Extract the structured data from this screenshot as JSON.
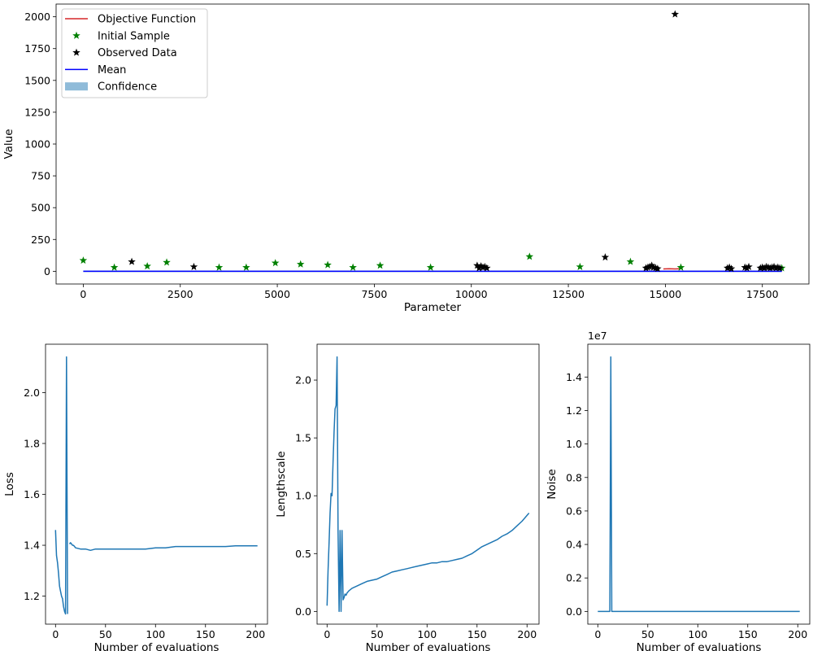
{
  "colors": {
    "objective": "#d62728",
    "initial": "#008000",
    "observed": "#000000",
    "mean": "#0000ff",
    "confidence": "#1f77b4",
    "line": "#1f77b4"
  },
  "chart_data": [
    {
      "type": "scatter",
      "xlabel": "Parameter",
      "ylabel": "Value",
      "xlim": [
        -700,
        18700
      ],
      "ylim": [
        -100,
        2100
      ],
      "x_ticks": [
        0,
        2500,
        5000,
        7500,
        10000,
        12500,
        15000,
        17500
      ],
      "y_ticks": [
        0,
        250,
        500,
        750,
        1000,
        1250,
        1500,
        1750,
        2000
      ],
      "legend": {
        "placement": "top-left",
        "items": [
          {
            "label": "Objective Function",
            "kind": "line",
            "color": "#d62728"
          },
          {
            "label": "Initial Sample",
            "kind": "star",
            "color": "#008000"
          },
          {
            "label": "Observed Data",
            "kind": "star",
            "color": "#000000"
          },
          {
            "label": "Mean",
            "kind": "line",
            "color": "#0000ff"
          },
          {
            "label": "Confidence",
            "kind": "patch",
            "color": "#1f77b4"
          }
        ]
      },
      "series": [
        {
          "name": "Objective Function",
          "type": "line",
          "x": [
            14950,
            15100,
            15250,
            15400
          ],
          "y": [
            18,
            20,
            18,
            20
          ]
        },
        {
          "name": "Initial Sample",
          "type": "scatter",
          "x": [
            0,
            800,
            1650,
            2150,
            3500,
            4200,
            4950,
            5600,
            6300,
            6950,
            7650,
            8950,
            11500,
            12800,
            14100,
            15400,
            18000
          ],
          "y": [
            85,
            30,
            40,
            70,
            30,
            30,
            65,
            55,
            50,
            30,
            45,
            30,
            115,
            35,
            75,
            30,
            25
          ]
        },
        {
          "name": "Observed Data",
          "type": "scatter",
          "x": [
            1250,
            2850,
            10150,
            10200,
            10250,
            10300,
            10350,
            10400,
            13450,
            14500,
            14550,
            14600,
            14650,
            14700,
            14750,
            14800,
            15250,
            16600,
            16650,
            16700,
            17050,
            17100,
            17150,
            17450,
            17500,
            17550,
            17600,
            17650,
            17700,
            17750,
            17800,
            17850,
            17900,
            17950
          ],
          "y": [
            75,
            35,
            45,
            25,
            40,
            30,
            35,
            25,
            110,
            25,
            30,
            35,
            45,
            30,
            25,
            20,
            2020,
            25,
            30,
            20,
            30,
            25,
            35,
            25,
            30,
            25,
            35,
            30,
            25,
            30,
            35,
            25,
            30,
            25
          ]
        },
        {
          "name": "Mean",
          "type": "line",
          "x": [
            0,
            18000
          ],
          "y": [
            0,
            0
          ]
        }
      ]
    },
    {
      "type": "line",
      "xlabel": "Number of evaluations",
      "ylabel": "Loss",
      "xlim": [
        -10,
        212
      ],
      "ylim": [
        1.09,
        2.19
      ],
      "x_ticks": [
        0,
        50,
        100,
        150,
        200
      ],
      "y_ticks": [
        1.2,
        1.4,
        1.6,
        1.8,
        2.0
      ],
      "series": [
        {
          "x": [
            0,
            1,
            2,
            3,
            4,
            5,
            6,
            7,
            8,
            9,
            10,
            11,
            12,
            13,
            14,
            15,
            16,
            17,
            18,
            19,
            20,
            25,
            30,
            35,
            40,
            50,
            60,
            70,
            80,
            90,
            100,
            110,
            120,
            130,
            140,
            150,
            160,
            170,
            180,
            190,
            200,
            202
          ],
          "y": [
            1.46,
            1.36,
            1.33,
            1.29,
            1.24,
            1.22,
            1.2,
            1.19,
            1.16,
            1.14,
            1.13,
            2.14,
            1.13,
            null,
            1.405,
            1.41,
            1.405,
            1.4,
            1.4,
            1.395,
            1.39,
            1.385,
            1.385,
            1.38,
            1.385,
            1.385,
            1.385,
            1.385,
            1.385,
            1.385,
            1.39,
            1.39,
            1.395,
            1.395,
            1.395,
            1.395,
            1.395,
            1.395,
            1.398,
            1.398,
            1.398,
            1.398
          ]
        }
      ]
    },
    {
      "type": "line",
      "xlabel": "Number of evaluations",
      "ylabel": "Lengthscale",
      "xlim": [
        -10,
        212
      ],
      "ylim": [
        -0.11,
        2.31
      ],
      "x_ticks": [
        0,
        50,
        100,
        150,
        200
      ],
      "y_ticks": [
        0.0,
        0.5,
        1.0,
        1.5,
        2.0
      ],
      "series": [
        {
          "x": [
            0,
            1,
            2,
            3,
            4,
            5,
            6,
            7,
            8,
            9,
            10,
            11,
            12,
            13,
            14,
            15,
            16,
            17,
            18,
            19,
            20,
            22,
            25,
            30,
            35,
            40,
            45,
            50,
            55,
            60,
            65,
            70,
            75,
            80,
            85,
            90,
            95,
            100,
            105,
            110,
            115,
            120,
            125,
            130,
            135,
            140,
            145,
            150,
            155,
            160,
            165,
            170,
            175,
            180,
            185,
            190,
            195,
            200,
            202
          ],
          "y": [
            0.05,
            0.35,
            0.6,
            0.85,
            1.02,
            1.0,
            1.3,
            1.55,
            1.75,
            1.78,
            2.2,
            0.7,
            0.0,
            0.7,
            0.0,
            0.7,
            0.1,
            0.12,
            0.15,
            0.14,
            0.16,
            0.18,
            0.2,
            0.22,
            0.24,
            0.26,
            0.27,
            0.28,
            0.3,
            0.32,
            0.34,
            0.35,
            0.36,
            0.37,
            0.38,
            0.39,
            0.4,
            0.41,
            0.42,
            0.42,
            0.43,
            0.43,
            0.44,
            0.45,
            0.46,
            0.48,
            0.5,
            0.53,
            0.56,
            0.58,
            0.6,
            0.62,
            0.65,
            0.67,
            0.7,
            0.74,
            0.78,
            0.83,
            0.85
          ]
        }
      ]
    },
    {
      "type": "line",
      "xlabel": "Number of evaluations",
      "ylabel": "Noise",
      "axis_multiplier": "1e7",
      "xlim": [
        -10,
        212
      ],
      "ylim": [
        -0.76,
        15.96
      ],
      "x_ticks": [
        0,
        50,
        100,
        150,
        200
      ],
      "y_ticks": [
        0.0,
        0.2,
        0.4,
        0.6,
        0.8,
        1.0,
        1.2,
        1.4
      ],
      "y_tick_scale": 10,
      "series": [
        {
          "x": [
            0,
            10,
            12,
            13,
            14,
            15,
            202
          ],
          "y": [
            0,
            0,
            0,
            15.2,
            0,
            0,
            0
          ]
        }
      ]
    }
  ]
}
